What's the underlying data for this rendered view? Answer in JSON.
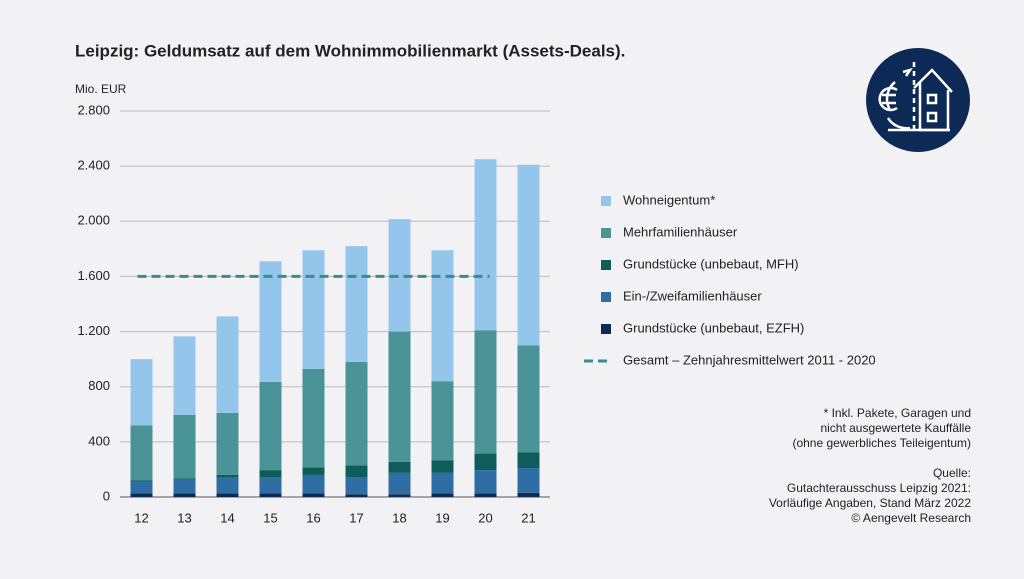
{
  "chart_data": {
    "type": "stacked_bar",
    "title": "Leipzig: Geldumsatz auf dem Wohnimmobilienmarkt (Assets-Deals).",
    "y_label": "Mio. EUR",
    "categories": [
      "12",
      "13",
      "14",
      "15",
      "16",
      "17",
      "18",
      "19",
      "20",
      "21"
    ],
    "series": [
      {
        "name": "Grundstücke (unbebaut, EZFH)",
        "color": "#0d2a56",
        "values": [
          25,
          25,
          25,
          25,
          25,
          20,
          20,
          25,
          25,
          30
        ]
      },
      {
        "name": "Ein-/Zweifamilienhäuser",
        "color": "#2f6ea5",
        "values": [
          85,
          100,
          115,
          120,
          135,
          125,
          155,
          150,
          170,
          180
        ]
      },
      {
        "name": "Grundstücke (unbebaut, MFH)",
        "color": "#0d5e5a",
        "values": [
          10,
          10,
          20,
          50,
          55,
          85,
          80,
          90,
          120,
          115
        ]
      },
      {
        "name": "Mehrfamilienhäuser",
        "color": "#4a9396",
        "values": [
          400,
          460,
          450,
          640,
          715,
          750,
          945,
          575,
          895,
          775
        ]
      },
      {
        "name": "Wohneigentum*",
        "color": "#94c5ea",
        "values": [
          480,
          570,
          700,
          875,
          860,
          840,
          815,
          950,
          1240,
          1310
        ]
      }
    ],
    "mean_line": {
      "name": "Gesamt – Zehnjahresmittelwert 2011 - 2020",
      "value": 1600,
      "color": "#3a8c8f"
    },
    "ylim": [
      0,
      2800
    ],
    "yticks": [
      0,
      400,
      800,
      {
        "value": 1200,
        "label": "1.200"
      },
      {
        "value": 1600,
        "label": "1.600"
      },
      {
        "value": 2000,
        "label": "2.000"
      },
      {
        "value": 2400,
        "label": "2.400"
      },
      {
        "value": 2800,
        "label": "2.800"
      }
    ],
    "grid": true,
    "notes": [
      "* Inkl. Pakete, Garagen und",
      "nicht ausgewertete Kauffälle",
      "(ohne gewerbliches Teileigentum)",
      "Quelle:",
      "Gutachterausschuss Leipzig 2021:",
      "Vorläufige Angaben, Stand März 2022",
      "© Aengevelt Research"
    ]
  }
}
